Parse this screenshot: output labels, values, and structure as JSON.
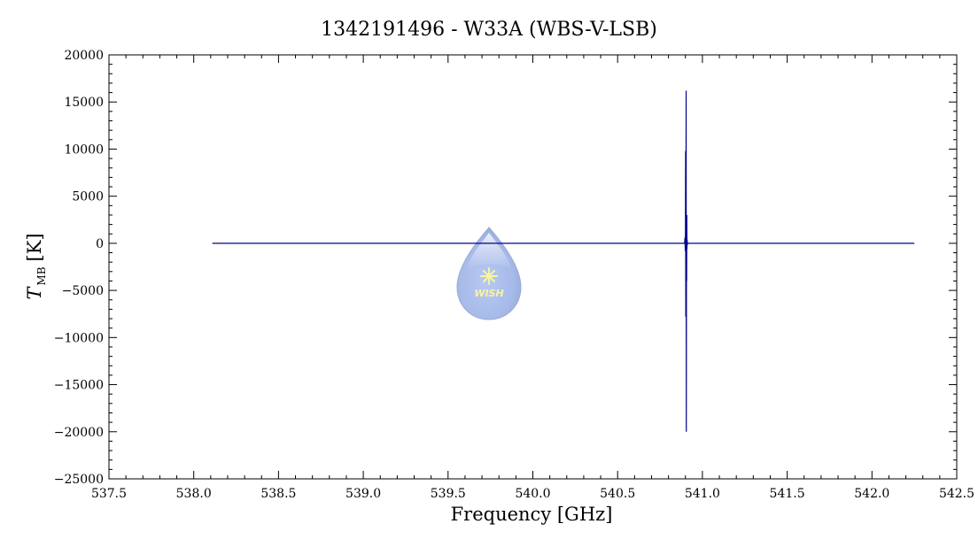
{
  "chart_data": {
    "type": "line",
    "title": "1342191496 - W33A (WBS-V-LSB)",
    "xlabel": "Frequency [GHz]",
    "ylabel": {
      "symbol": "T",
      "subscript": "MB",
      "unit": "[K]"
    },
    "xlim": [
      537.5,
      542.5
    ],
    "ylim": [
      -25000,
      20000
    ],
    "x_ticks": [
      "537.5",
      "538.0",
      "538.5",
      "539.0",
      "539.5",
      "540.0",
      "540.5",
      "541.0",
      "541.5",
      "542.0",
      "542.5"
    ],
    "y_ticks": [
      "20000",
      "15000",
      "10000",
      "5000",
      "0",
      "-5000",
      "-10000",
      "-15000",
      "-20000",
      "-25000"
    ],
    "grid": false,
    "line_color": "#00008b",
    "series": [
      {
        "x": [
          538.11,
          540.895,
          540.897,
          540.899,
          540.9,
          540.901,
          540.902,
          540.903,
          540.904,
          540.905,
          540.906,
          540.907,
          540.908,
          540.909,
          540.91,
          540.911,
          540.912,
          540.913,
          540.915,
          542.25
        ],
        "y": [
          0,
          0,
          600,
          -800,
          1200,
          9800,
          -7800,
          500,
          16200,
          -20000,
          1000,
          -4000,
          3000,
          -600,
          400,
          -200,
          100,
          0,
          0,
          0
        ]
      }
    ],
    "logo": {
      "text": "WISH",
      "icon": "water-drop-icon"
    }
  }
}
